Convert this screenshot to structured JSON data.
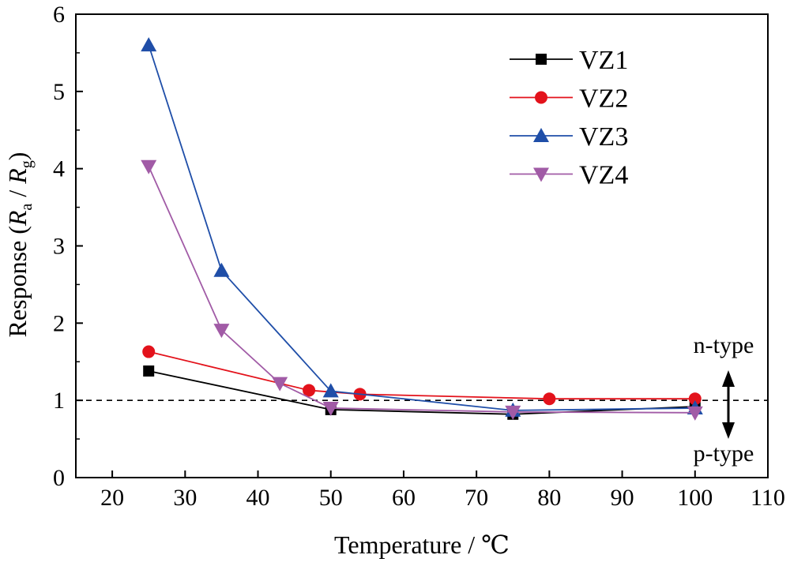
{
  "chart_data": {
    "type": "line",
    "title": "",
    "xlabel": "Temperature / ℃",
    "ylabel_prefix": "Response (",
    "ylabel_ra": "R",
    "ylabel_ra_sub": "a",
    "ylabel_mid": " / ",
    "ylabel_rg": "R",
    "ylabel_rg_sub": "g",
    "ylabel_suffix": ")",
    "xlim": [
      15,
      110
    ],
    "ylim": [
      0,
      6
    ],
    "xticks": [
      20,
      30,
      40,
      50,
      60,
      70,
      80,
      90,
      100,
      110
    ],
    "yticks": [
      0,
      1,
      2,
      3,
      4,
      5,
      6
    ],
    "grid": false,
    "legend_position": "top-right",
    "reference_line": {
      "y": 1,
      "style": "dashed"
    },
    "annotations": {
      "upper": "n-type",
      "lower": "p-type"
    },
    "series": [
      {
        "name": "VZ1",
        "color": "#000000",
        "marker": "square",
        "x": [
          25,
          50,
          75,
          100
        ],
        "y": [
          1.38,
          0.88,
          0.82,
          0.92
        ]
      },
      {
        "name": "VZ2",
        "color": "#e3121b",
        "marker": "circle",
        "x": [
          25,
          47,
          54,
          80,
          100
        ],
        "y": [
          1.63,
          1.13,
          1.08,
          1.02,
          1.02
        ]
      },
      {
        "name": "VZ3",
        "color": "#1f4ea8",
        "marker": "triangle-up",
        "x": [
          25,
          35,
          50,
          75,
          100
        ],
        "y": [
          5.6,
          2.68,
          1.12,
          0.87,
          0.9
        ]
      },
      {
        "name": "VZ4",
        "color": "#a15ba6",
        "marker": "triangle-down",
        "x": [
          25,
          35,
          43,
          50,
          75,
          100
        ],
        "y": [
          4.03,
          1.91,
          1.22,
          0.9,
          0.85,
          0.84
        ]
      }
    ]
  }
}
